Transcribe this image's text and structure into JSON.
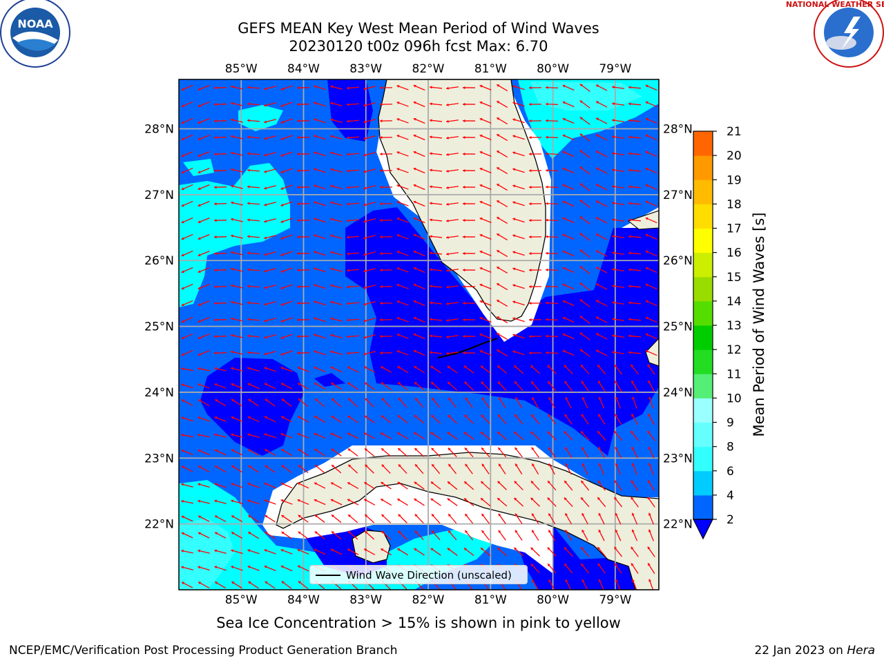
{
  "title_line1": "GEFS MEAN Key West Mean Period of Wind Waves",
  "title_line2": "20230120 t00z 096h fcst   Max: 6.70",
  "map": {
    "lon_labels": [
      "85°W",
      "84°W",
      "83°W",
      "82°W",
      "81°W",
      "80°W",
      "79°W"
    ],
    "lat_labels": [
      "28°N",
      "27°N",
      "26°N",
      "25°N",
      "24°N",
      "23°N",
      "22°N"
    ],
    "lon_values": [
      -85,
      -84,
      -83,
      -82,
      -81,
      -80,
      -79
    ],
    "lat_values": [
      28,
      27,
      26,
      25,
      24,
      23,
      22
    ],
    "extent": {
      "lon_min": -86.0,
      "lon_max": -78.3,
      "lat_min": 21.0,
      "lat_max": 28.75
    }
  },
  "colorbar": {
    "label": "Mean Period of Wind Waves [s]",
    "ticks": [
      "2",
      "4",
      "6",
      "8",
      "9",
      "10",
      "11",
      "12",
      "13",
      "14",
      "15",
      "16",
      "17",
      "18",
      "19",
      "20",
      "21"
    ],
    "colors": [
      "#0066ff",
      "#00ccff",
      "#33ffff",
      "#66ffff",
      "#99ffff",
      "#55ee77",
      "#22dd22",
      "#00cc00",
      "#55dd00",
      "#99dd00",
      "#ccee00",
      "#ffff00",
      "#ffdd00",
      "#ffbb00",
      "#ff9900",
      "#ff6600",
      "#ff3300",
      "#ff0000"
    ]
  },
  "legend": {
    "label": "Wind Wave Direction (unscaled)"
  },
  "note": "Sea Ice Concentration > 15% is shown in pink to yellow",
  "footer_left": "NCEP/EMC/Verification Post Processing Product Generation Branch",
  "footer_right_prefix": "22 Jan 2023 on ",
  "footer_right_italic": "Hera",
  "logos": {
    "left": "NOAA",
    "right": "NATIONAL WEATHER SERVICE"
  },
  "colors": {
    "land": "#eeeedd",
    "dark_blue": "#0000ff",
    "mid_blue": "#0066ff",
    "cyan": "#00ffff",
    "light_cyan": "#33ffff",
    "arrow": "#ff0000"
  }
}
